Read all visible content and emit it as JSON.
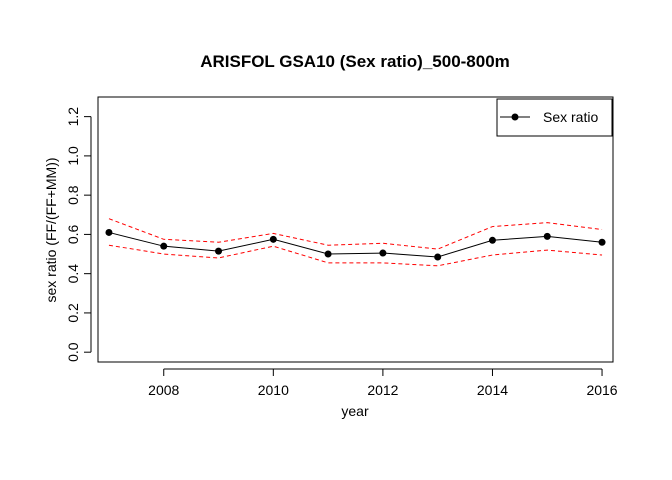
{
  "chart_data": {
    "type": "line",
    "title": "ARISFOL GSA10 (Sex ratio)_500-800m",
    "xlabel": "year",
    "ylabel": "sex ratio (FF/(FF+MM))",
    "x": [
      2007,
      2008,
      2009,
      2010,
      2011,
      2012,
      2013,
      2014,
      2015,
      2016
    ],
    "xlim": [
      2006.8,
      2016.2
    ],
    "ylim": [
      -0.05,
      1.3
    ],
    "x_ticks": [
      "2008",
      "2010",
      "2012",
      "2014",
      "2016"
    ],
    "y_ticks": [
      "0.0",
      "0.2",
      "0.4",
      "0.6",
      "0.8",
      "1.0",
      "1.2"
    ],
    "series": [
      {
        "name": "Sex ratio",
        "values": [
          0.61,
          0.54,
          0.515,
          0.575,
          0.5,
          0.505,
          0.485,
          0.57,
          0.59,
          0.56
        ],
        "color": "#000000",
        "style": "line-with-points"
      }
    ],
    "confidence_band": {
      "upper": [
        0.68,
        0.575,
        0.56,
        0.605,
        0.545,
        0.555,
        0.525,
        0.64,
        0.66,
        0.625
      ],
      "lower": [
        0.545,
        0.5,
        0.48,
        0.54,
        0.455,
        0.455,
        0.44,
        0.495,
        0.52,
        0.495
      ],
      "color": "#ff0000",
      "style": "dashed"
    },
    "legend": {
      "position": "top-right",
      "entries": [
        "Sex ratio"
      ]
    },
    "grid": false
  }
}
